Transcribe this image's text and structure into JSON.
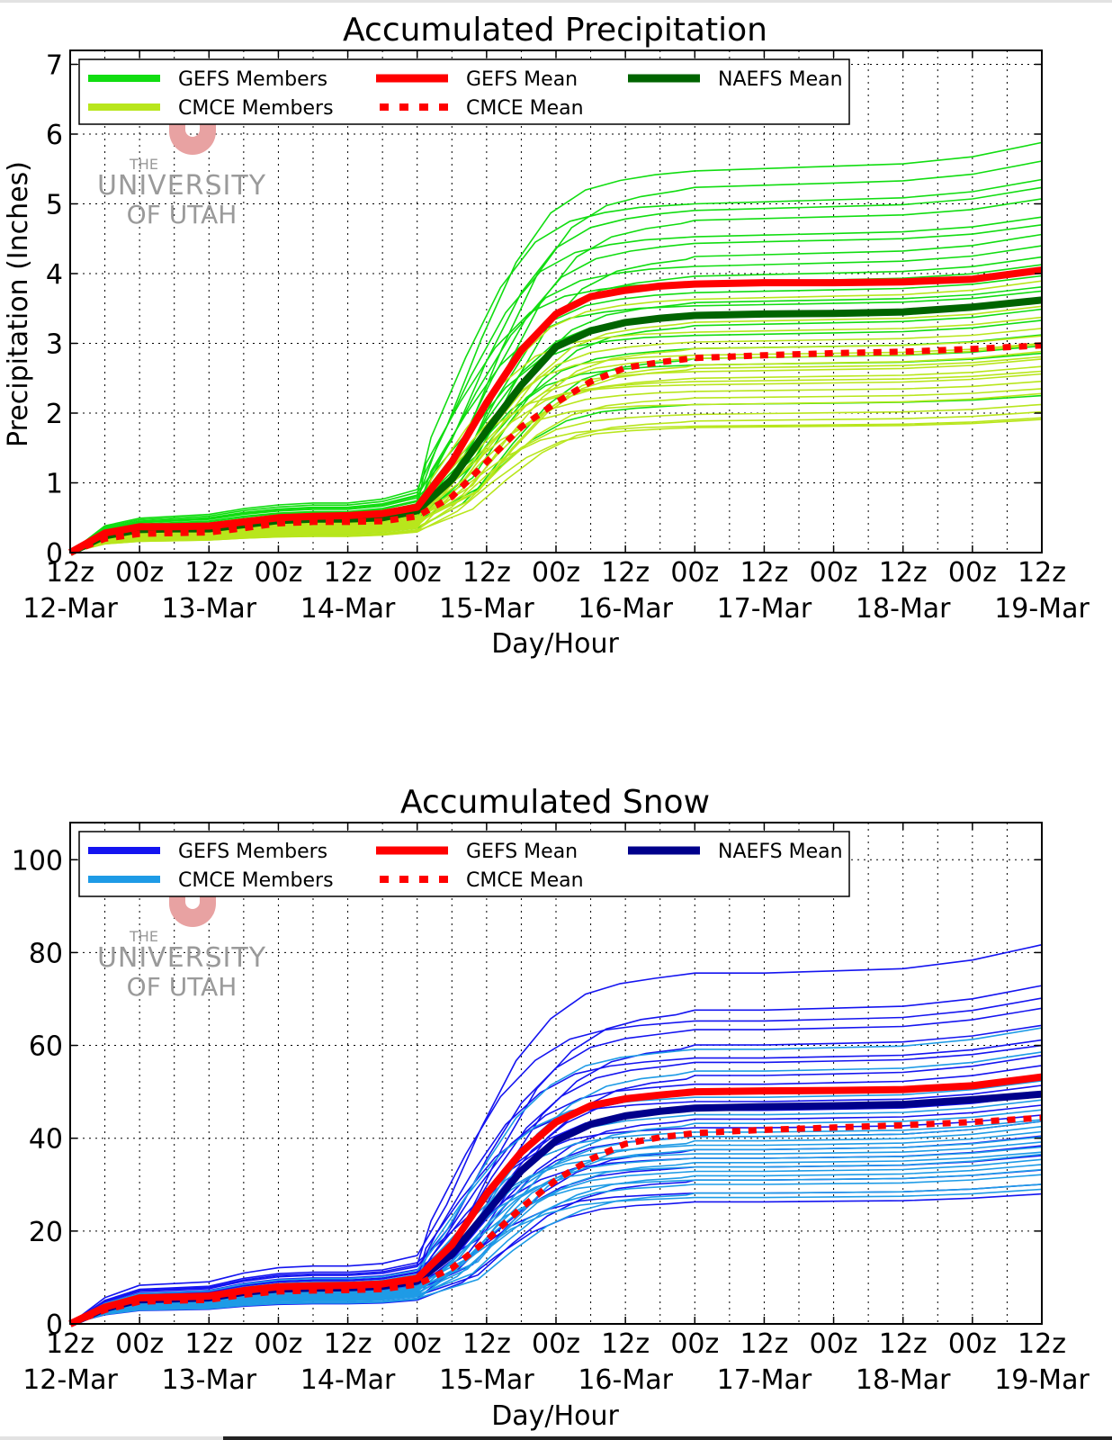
{
  "chart_data": [
    {
      "type": "line",
      "title": "Accumulated Precipitation",
      "xlabel": "Day/Hour",
      "ylabel": "Precipitation (Inches)",
      "ylim": [
        0,
        7.2
      ],
      "yticks": [
        0,
        1,
        2,
        3,
        4,
        5,
        6,
        7
      ],
      "x_range_hours": [
        0,
        168
      ],
      "x_ticks": [
        {
          "hour": 0,
          "label": "12z",
          "date": "12-Mar"
        },
        {
          "hour": 12,
          "label": "00z",
          "date": ""
        },
        {
          "hour": 24,
          "label": "12z",
          "date": "13-Mar"
        },
        {
          "hour": 36,
          "label": "00z",
          "date": ""
        },
        {
          "hour": 48,
          "label": "12z",
          "date": "14-Mar"
        },
        {
          "hour": 60,
          "label": "00z",
          "date": ""
        },
        {
          "hour": 72,
          "label": "12z",
          "date": "15-Mar"
        },
        {
          "hour": 84,
          "label": "00z",
          "date": ""
        },
        {
          "hour": 96,
          "label": "12z",
          "date": "16-Mar"
        },
        {
          "hour": 108,
          "label": "00z",
          "date": ""
        },
        {
          "hour": 120,
          "label": "12z",
          "date": "17-Mar"
        },
        {
          "hour": 132,
          "label": "00z",
          "date": ""
        },
        {
          "hour": 144,
          "label": "12z",
          "date": "18-Mar"
        },
        {
          "hour": 156,
          "label": "00z",
          "date": ""
        },
        {
          "hour": 168,
          "label": "12z",
          "date": "19-Mar"
        }
      ],
      "legend": [
        {
          "label": "GEFS Members",
          "color": "#11dd11",
          "style": "solid"
        },
        {
          "label": "GEFS Mean",
          "color": "#ff0000",
          "style": "solid"
        },
        {
          "label": "NAEFS Mean",
          "color": "#006400",
          "style": "solid"
        },
        {
          "label": "CMCE Members",
          "color": "#b8e61c",
          "style": "solid"
        },
        {
          "label": "CMCE Mean",
          "color": "#ff0000",
          "style": "dotted"
        }
      ],
      "gefs_member_color": "#11dd11",
      "cmce_member_color": "#b8e61c",
      "mean_series": [
        {
          "name": "GEFS Mean",
          "color": "#ff0000",
          "dash": false,
          "x": [
            0,
            6,
            12,
            18,
            24,
            30,
            36,
            42,
            48,
            54,
            60,
            66,
            72,
            78,
            84,
            90,
            96,
            102,
            108,
            120,
            132,
            144,
            156,
            168
          ],
          "y": [
            0,
            0.28,
            0.37,
            0.37,
            0.38,
            0.44,
            0.5,
            0.52,
            0.53,
            0.56,
            0.65,
            1.3,
            2.15,
            2.9,
            3.42,
            3.67,
            3.76,
            3.82,
            3.85,
            3.87,
            3.87,
            3.88,
            3.92,
            4.05
          ]
        },
        {
          "name": "NAEFS Mean",
          "color": "#006400",
          "dash": false,
          "x": [
            0,
            6,
            12,
            18,
            24,
            30,
            36,
            42,
            48,
            54,
            60,
            66,
            72,
            78,
            84,
            90,
            96,
            102,
            108,
            120,
            132,
            144,
            156,
            168
          ],
          "y": [
            0,
            0.24,
            0.33,
            0.34,
            0.34,
            0.4,
            0.46,
            0.48,
            0.48,
            0.5,
            0.6,
            1.05,
            1.75,
            2.4,
            2.95,
            3.18,
            3.3,
            3.36,
            3.4,
            3.42,
            3.43,
            3.45,
            3.52,
            3.62
          ]
        },
        {
          "name": "CMCE Mean",
          "color": "#ff0000",
          "dash": true,
          "x": [
            0,
            6,
            12,
            18,
            24,
            30,
            36,
            42,
            48,
            54,
            60,
            66,
            72,
            78,
            84,
            90,
            96,
            102,
            108,
            120,
            132,
            144,
            156,
            168
          ],
          "y": [
            0,
            0.2,
            0.27,
            0.28,
            0.29,
            0.35,
            0.42,
            0.44,
            0.44,
            0.45,
            0.52,
            0.8,
            1.3,
            1.8,
            2.15,
            2.45,
            2.65,
            2.73,
            2.79,
            2.83,
            2.86,
            2.88,
            2.92,
            2.97
          ]
        }
      ],
      "member_profile": {
        "x": [
          0,
          6,
          12,
          18,
          24,
          30,
          36,
          42,
          48,
          54,
          60,
          66,
          72,
          78,
          84,
          90,
          96,
          102,
          108,
          120,
          132,
          144,
          156,
          168
        ],
        "shape": [
          0,
          0.07,
          0.09,
          0.095,
          0.1,
          0.115,
          0.125,
          0.13,
          0.13,
          0.14,
          0.165,
          0.33,
          0.56,
          0.76,
          0.89,
          0.95,
          0.975,
          0.99,
          1.0,
          1.005,
          1.01,
          1.015,
          1.03,
          1.06
        ]
      },
      "gefs_member_finals": [
        5.8,
        5.55,
        5.3,
        5.2,
        5.05,
        4.8,
        4.7,
        4.5,
        4.35,
        4.2,
        4.1,
        3.95,
        3.8,
        3.75,
        3.6,
        3.45,
        3.3,
        3.1,
        2.95,
        2.85,
        2.25
      ],
      "cmce_member_finals": [
        3.85,
        3.5,
        3.35,
        3.2,
        3.1,
        3.0,
        2.95,
        2.85,
        2.75,
        2.65,
        2.55,
        2.45,
        2.35,
        2.25,
        2.1,
        2.0,
        1.92,
        1.9,
        2.8,
        2.6
      ]
    },
    {
      "type": "line",
      "title": "Accumulated Snow",
      "xlabel": "Day/Hour",
      "ylabel": "",
      "ylim": [
        0,
        108
      ],
      "yticks": [
        0,
        20,
        40,
        60,
        80,
        100
      ],
      "x_range_hours": [
        0,
        168
      ],
      "x_ticks": [
        {
          "hour": 0,
          "label": "12z",
          "date": "12-Mar"
        },
        {
          "hour": 12,
          "label": "00z",
          "date": ""
        },
        {
          "hour": 24,
          "label": "12z",
          "date": "13-Mar"
        },
        {
          "hour": 36,
          "label": "00z",
          "date": ""
        },
        {
          "hour": 48,
          "label": "12z",
          "date": "14-Mar"
        },
        {
          "hour": 60,
          "label": "00z",
          "date": ""
        },
        {
          "hour": 72,
          "label": "12z",
          "date": "15-Mar"
        },
        {
          "hour": 84,
          "label": "00z",
          "date": ""
        },
        {
          "hour": 96,
          "label": "12z",
          "date": "16-Mar"
        },
        {
          "hour": 108,
          "label": "00z",
          "date": ""
        },
        {
          "hour": 120,
          "label": "12z",
          "date": "17-Mar"
        },
        {
          "hour": 132,
          "label": "00z",
          "date": ""
        },
        {
          "hour": 144,
          "label": "12z",
          "date": "18-Mar"
        },
        {
          "hour": 156,
          "label": "00z",
          "date": ""
        },
        {
          "hour": 168,
          "label": "12z",
          "date": "19-Mar"
        }
      ],
      "legend": [
        {
          "label": "GEFS Members",
          "color": "#1414f0",
          "style": "solid"
        },
        {
          "label": "GEFS Mean",
          "color": "#ff0000",
          "style": "solid"
        },
        {
          "label": "NAEFS Mean",
          "color": "#00008b",
          "style": "solid"
        },
        {
          "label": "CMCE Members",
          "color": "#1e9be6",
          "style": "solid"
        },
        {
          "label": "CMCE Mean",
          "color": "#ff0000",
          "style": "dotted"
        }
      ],
      "gefs_member_color": "#1414f0",
      "cmce_member_color": "#1e9be6",
      "mean_series": [
        {
          "name": "GEFS Mean",
          "color": "#ff0000",
          "dash": false,
          "x": [
            0,
            6,
            12,
            18,
            24,
            30,
            36,
            42,
            48,
            54,
            60,
            66,
            72,
            78,
            84,
            90,
            96,
            102,
            108,
            120,
            132,
            144,
            156,
            168
          ],
          "y": [
            0,
            3.6,
            5.6,
            5.8,
            6.0,
            7.2,
            8.0,
            8.2,
            8.3,
            8.6,
            9.8,
            17,
            28,
            37,
            43.5,
            47,
            48.5,
            49.3,
            50,
            50.2,
            50.3,
            50.5,
            51.3,
            53.2
          ]
        },
        {
          "name": "NAEFS Mean",
          "color": "#00008b",
          "dash": false,
          "x": [
            0,
            6,
            12,
            18,
            24,
            30,
            36,
            42,
            48,
            54,
            60,
            66,
            72,
            78,
            84,
            90,
            96,
            102,
            108,
            120,
            132,
            144,
            156,
            168
          ],
          "y": [
            0,
            3.3,
            5.2,
            5.4,
            5.6,
            6.8,
            7.5,
            7.7,
            7.8,
            8.1,
            9.2,
            15,
            24,
            33,
            39.5,
            43,
            44.8,
            45.8,
            46.5,
            46.8,
            47,
            47.3,
            48.3,
            49.5
          ]
        },
        {
          "name": "CMCE Mean",
          "color": "#ff0000",
          "dash": true,
          "x": [
            0,
            6,
            12,
            18,
            24,
            30,
            36,
            42,
            48,
            54,
            60,
            66,
            72,
            78,
            84,
            90,
            96,
            102,
            108,
            120,
            132,
            144,
            156,
            168
          ],
          "y": [
            0,
            3.0,
            4.8,
            5.0,
            5.2,
            6.3,
            7.0,
            7.2,
            7.3,
            7.5,
            8.5,
            12,
            18,
            25,
            31,
            35.5,
            38.8,
            40.2,
            41.1,
            41.8,
            42.3,
            42.8,
            43.5,
            44.4
          ]
        }
      ],
      "member_profile": {
        "x": [
          0,
          6,
          12,
          18,
          24,
          30,
          36,
          42,
          48,
          54,
          60,
          66,
          72,
          78,
          84,
          90,
          96,
          102,
          108,
          120,
          132,
          144,
          156,
          168
        ],
        "shape": [
          0,
          0.075,
          0.11,
          0.115,
          0.12,
          0.145,
          0.16,
          0.165,
          0.165,
          0.172,
          0.195,
          0.34,
          0.56,
          0.75,
          0.87,
          0.94,
          0.97,
          0.985,
          1.0,
          1.0,
          1.005,
          1.01,
          1.03,
          1.065
        ]
      },
      "gefs_member_finals": [
        80.5,
        72,
        69.5,
        67.5,
        64,
        61,
        60,
        57,
        55,
        53,
        51,
        49,
        47,
        45,
        43,
        40,
        38,
        36,
        33,
        30,
        28
      ],
      "cmce_member_finals": [
        63,
        58,
        52,
        48,
        46,
        44,
        43,
        42,
        41,
        40,
        39,
        38,
        37,
        36,
        35,
        34,
        33,
        32,
        30,
        29
      ]
    }
  ],
  "watermark": {
    "line1": "THE",
    "line2": "UNIVERSITY",
    "line3": "OF UTAH"
  }
}
